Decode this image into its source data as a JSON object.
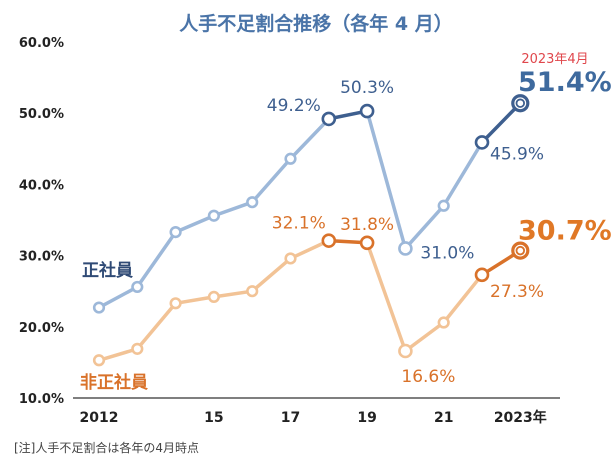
{
  "title": "人手不足割合推移（各年 4 月）",
  "note": "[注]人手不足割合は各年の4月時点",
  "latest_date_label": "2023年4月",
  "colors": {
    "regular_dark": "#3e5f8f",
    "regular_light": "#9db8d9",
    "nonregular_dark": "#d9722a",
    "nonregular_light": "#f2c396"
  },
  "chart_data": {
    "type": "line",
    "title": "人手不足割合推移（各年 4 月）",
    "x": [
      2012,
      2013,
      2014,
      2015,
      2016,
      2017,
      2018,
      2019,
      2020,
      2021,
      2022,
      2023
    ],
    "x_tick_labels": [
      "2012",
      "15",
      "17",
      "19",
      "21",
      "2023年"
    ],
    "x_tick_values": [
      2012,
      2015,
      2017,
      2019,
      2021,
      2023
    ],
    "y_tick_labels": [
      "10.0%",
      "20.0%",
      "30.0%",
      "40.0%",
      "50.0%",
      "60.0%"
    ],
    "ylim": [
      10,
      60
    ],
    "xlim": [
      2011.5,
      2023.8
    ],
    "grid": false,
    "series": [
      {
        "name": "正社員",
        "values": [
          22.7,
          25.6,
          33.3,
          35.6,
          37.5,
          43.6,
          49.2,
          50.3,
          31.0,
          37.0,
          45.9,
          51.4
        ],
        "data_labels": {
          "2018": "49.2%",
          "2019": "50.3%",
          "2020": "31.0%",
          "2022": "45.9%",
          "2023": "51.4%"
        }
      },
      {
        "name": "非正社員",
        "values": [
          15.3,
          16.9,
          23.3,
          24.2,
          25.0,
          29.6,
          32.1,
          31.8,
          16.6,
          20.6,
          27.3,
          30.7
        ],
        "data_labels": {
          "2018": "32.1%",
          "2019": "31.8%",
          "2020": "16.6%",
          "2022": "27.3%",
          "2023": "30.7%"
        }
      }
    ]
  }
}
